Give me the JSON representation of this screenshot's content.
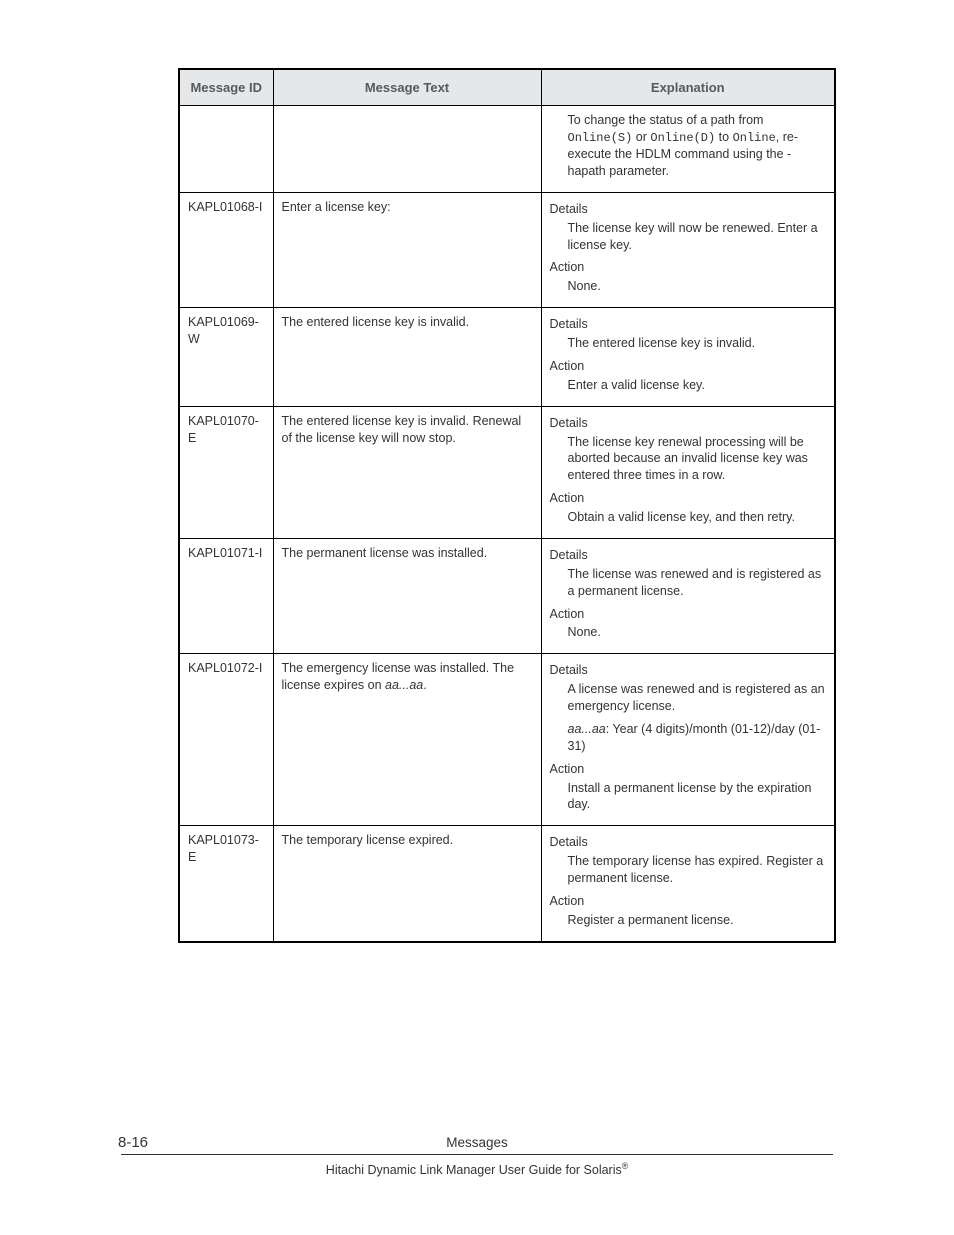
{
  "table": {
    "border_color": "#000000",
    "header_bg": "#e6e7e8",
    "header_color": "#58595b",
    "headers": {
      "id": "Message ID",
      "text": "Message Text",
      "exp": "Explanation"
    },
    "rows": [
      {
        "id": "",
        "text": "",
        "exp_blocks": [
          {
            "label": null,
            "body_html": "To change the status of a path from <span class=\"mono\">Online(S)</span> or <span class=\"mono\">Online(D)</span> to <span class=\"mono\">Online</span>, re-execute the HDLM command using the -hapath parameter."
          }
        ]
      },
      {
        "id": "KAPL01068-I",
        "text": "Enter a license key:",
        "exp_blocks": [
          {
            "label": "Details",
            "body_html": "The license key will now be renewed. Enter a license key."
          },
          {
            "label": "Action",
            "body_html": "None."
          }
        ]
      },
      {
        "id": "KAPL01069-W",
        "text": "The entered license key is invalid.",
        "exp_blocks": [
          {
            "label": "Details",
            "body_html": "The entered license key is invalid."
          },
          {
            "label": "Action",
            "body_html": "Enter a valid license key."
          }
        ]
      },
      {
        "id": "KAPL01070-E",
        "text": "The entered license key is invalid. Renewal of the license key will now stop.",
        "exp_blocks": [
          {
            "label": "Details",
            "body_html": "The license key renewal processing will be aborted because an invalid license key was entered three times in a row."
          },
          {
            "label": "Action",
            "body_html": "Obtain a valid license key, and then retry."
          }
        ]
      },
      {
        "id": "KAPL01071-I",
        "text": "The permanent license was installed.",
        "exp_blocks": [
          {
            "label": "Details",
            "body_html": "The license was renewed and is registered as a permanent license."
          },
          {
            "label": "Action",
            "body_html": "None."
          }
        ]
      },
      {
        "id": "KAPL01072-I",
        "text_html": "The emergency license was installed. The license expires on <span class=\"ital\">aa...aa</span>.",
        "exp_blocks": [
          {
            "label": "Details",
            "body_html": "A license was renewed and is registered as an emergency license."
          },
          {
            "label": null,
            "body_html": "<span class=\"ital\">aa...aa</span>: Year (4 digits)/month (01-12)/day (01-31)"
          },
          {
            "label": "Action",
            "body_html": "Install a permanent license by the expiration day."
          }
        ]
      },
      {
        "id": "KAPL01073-E",
        "text": "The temporary license expired.",
        "exp_blocks": [
          {
            "label": "Details",
            "body_html": "The temporary license has expired. Register a permanent license."
          },
          {
            "label": "Action",
            "body_html": "Register a permanent license."
          }
        ]
      }
    ]
  },
  "footer": {
    "page_number": "8-16",
    "section": "Messages",
    "guide_html": "Hitachi Dynamic Link Manager User Guide for Solaris<sup class=\"reg\">®</sup>"
  }
}
